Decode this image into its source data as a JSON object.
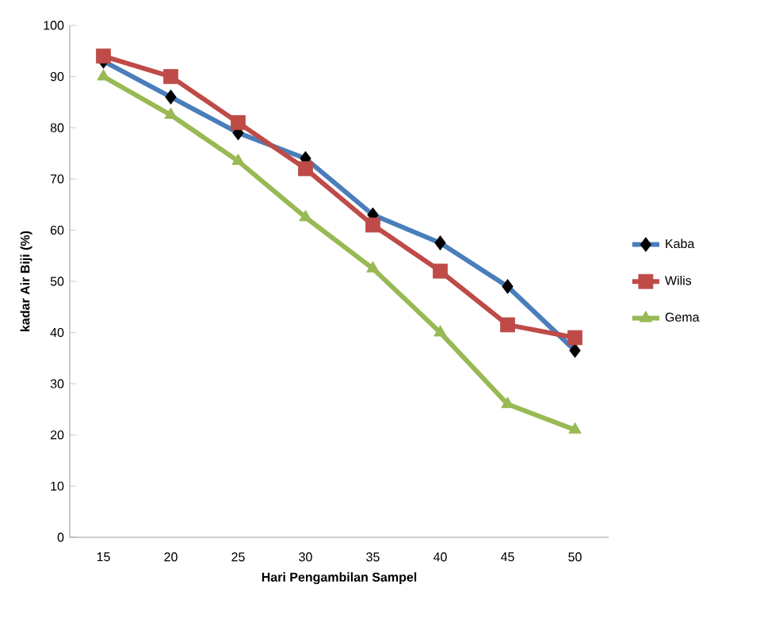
{
  "chart_data": {
    "type": "line",
    "xlabel": "Hari Pengambilan Sampel",
    "ylabel": "kadar Air Biji (%)",
    "categories": [
      "15",
      "20",
      "25",
      "30",
      "35",
      "40",
      "45",
      "50"
    ],
    "series": [
      {
        "name": "Kaba",
        "color": "#4a7ebb",
        "marker": "diamond",
        "values": [
          93,
          86,
          79,
          74,
          63,
          57.5,
          49,
          36.5
        ]
      },
      {
        "name": "Wilis",
        "color": "#be4b48",
        "marker": "square",
        "values": [
          94,
          90,
          81,
          72,
          61,
          52,
          41.5,
          39
        ]
      },
      {
        "name": "Gema",
        "color": "#98b954",
        "marker": "triangle",
        "values": [
          90,
          82.5,
          73.5,
          62.5,
          52.5,
          40,
          26,
          21
        ]
      }
    ],
    "ylim": [
      0,
      100
    ],
    "yticks": [
      0,
      10,
      20,
      30,
      40,
      50,
      60,
      70,
      80,
      90,
      100
    ],
    "legend": "right",
    "grid": false,
    "line_style": "solid"
  }
}
